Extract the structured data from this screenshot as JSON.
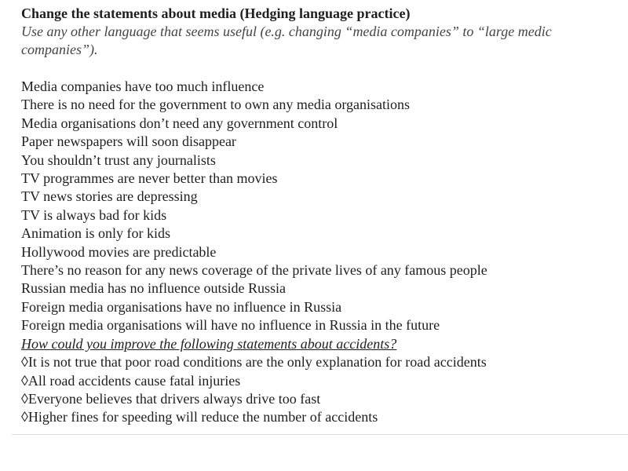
{
  "title": "Change the statements about media (Hedging language practice)",
  "instruction_line1": "Use any other language that seems useful (e.g. changing “media companies” to “large medic",
  "instruction_line2": "companies”).",
  "media_statements": [
    "Media companies have too much influence",
    "There is no need for the government to own any media organisations",
    "Media organisations don’t need any government control",
    "Paper newspapers will soon disappear",
    "You shouldn’t trust any journalists",
    "TV programmes are never better than movies",
    "TV news stories are depressing",
    "TV is always bad for kids",
    "Animation is only for kids",
    "Hollywood movies are predictable",
    "There’s no reason for any news coverage of the private lives of any famous people",
    "Russian media has no influence outside Russia",
    "Foreign media organisations have no influence in Russia",
    "Foreign media organisations will have no influence in Russia in the future"
  ],
  "accidents_question": "How could you improve the following statements about accidents?",
  "accident_statements": [
    "◊It is not true that poor road conditions are the only explanation for road accidents",
    "◊All road accidents cause fatal injuries",
    "◊Everyone believes that drivers always drive too fast",
    "◊Higher fines for speeding will reduce the number of accidents"
  ]
}
